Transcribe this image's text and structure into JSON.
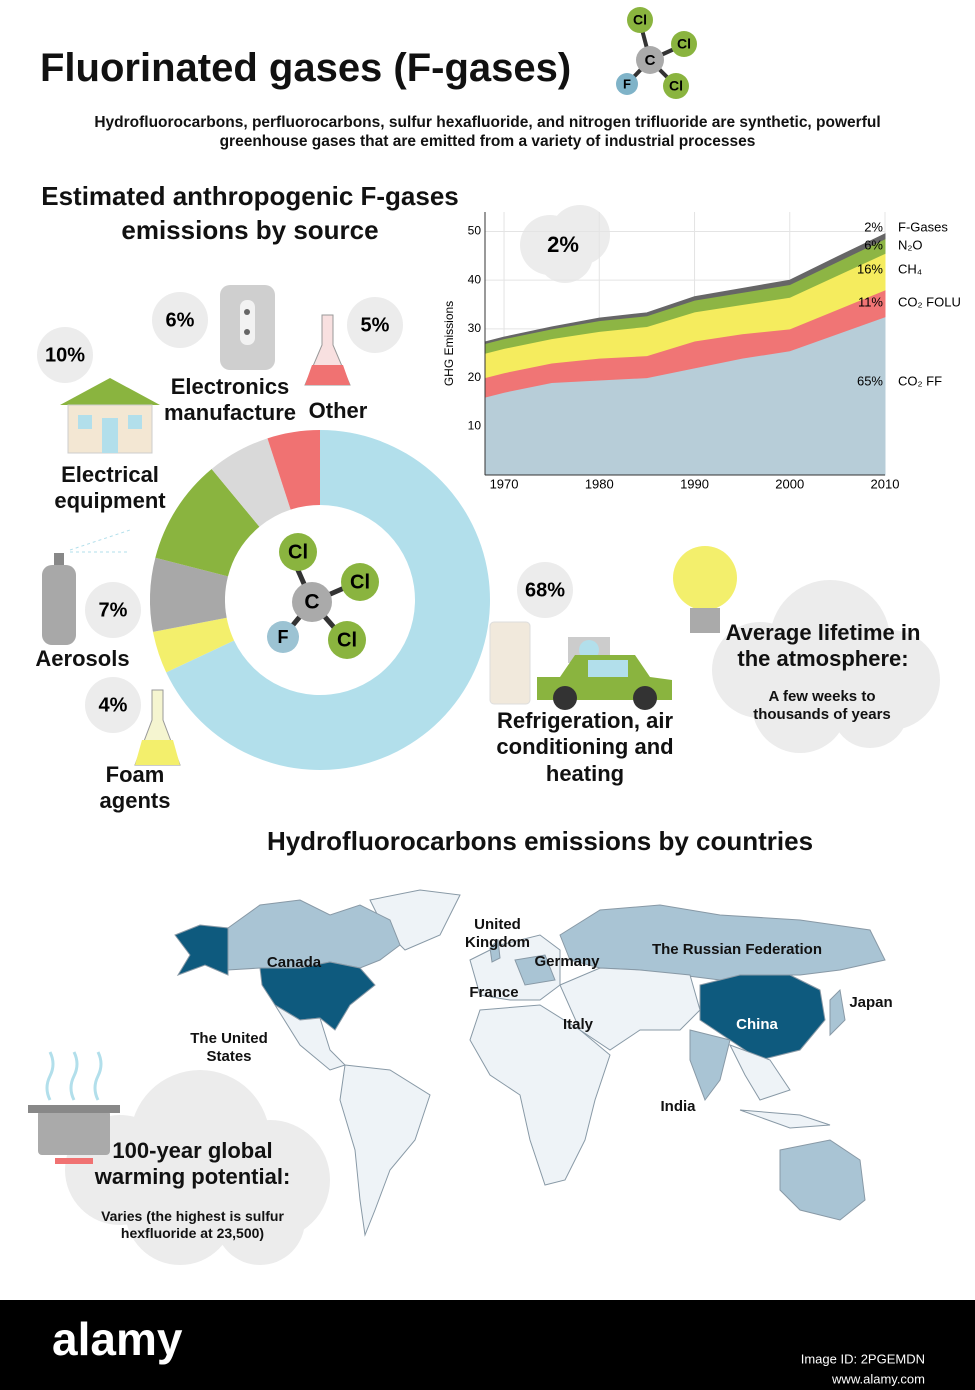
{
  "header": {
    "title": "Fluorinated gases (F-gases)",
    "subtitle": "Hydrofluorocarbons, perfluorocarbons, sulfur hexafluoride, and nitrogen trifluoride are synthetic, powerful greenhouse gases that are emitted from a variety of industrial processes",
    "molecule": {
      "center": "C",
      "chlorine": "Cl",
      "fluorine": "F"
    }
  },
  "chart_data": [
    {
      "type": "donut",
      "title": "Estimated anthropogenic F-gases emissions by source",
      "categories": [
        "Refrigeration, air conditioning and heating",
        "Foam agents",
        "Aerosols",
        "Electrical equipment",
        "Electronics manufacture",
        "Other"
      ],
      "values": [
        68,
        4,
        7,
        10,
        6,
        5
      ],
      "value_labels": [
        "68%",
        "4%",
        "7%",
        "10%",
        "6%",
        "5%"
      ],
      "colors": [
        "#b2dfeb",
        "#f3ef6c",
        "#a8a8a8",
        "#8ab43f",
        "#d9d9d9",
        "#f07272"
      ]
    },
    {
      "type": "area",
      "stacked": true,
      "annotation": "2%",
      "y_label": "GHG Emissions",
      "x": [
        1968,
        1970,
        1975,
        1980,
        1985,
        1990,
        1995,
        2000,
        2005,
        2010
      ],
      "series": [
        {
          "name": "CO₂ FF",
          "color": "#b7cdd8",
          "share": 65,
          "share_label": "65%",
          "values": [
            16,
            17,
            19,
            19.5,
            20,
            22,
            24,
            25.5,
            29,
            32.5
          ]
        },
        {
          "name": "CO₂ FOLU",
          "color": "#f07575",
          "share": 11,
          "share_label": "11%",
          "values": [
            4,
            4,
            4,
            4.5,
            4.5,
            5.5,
            5,
            4.5,
            5,
            5.5
          ]
        },
        {
          "name": "CH₄",
          "color": "#f5ec5e",
          "share": 16,
          "share_label": "16%",
          "values": [
            5,
            5,
            5,
            5.5,
            6,
            6,
            6,
            6.5,
            7,
            7.5
          ]
        },
        {
          "name": "N₂O",
          "color": "#8db544",
          "share": 6,
          "share_label": "6%",
          "values": [
            2,
            2,
            2,
            2.2,
            2.2,
            2.4,
            2.5,
            2.6,
            2.8,
            3
          ]
        },
        {
          "name": "F-Gases",
          "color": "#666666",
          "share": 2,
          "share_label": "2%",
          "values": [
            0.3,
            0.3,
            0.4,
            0.5,
            0.6,
            0.7,
            0.8,
            0.9,
            1,
            1
          ]
        }
      ],
      "xlim": [
        1968,
        2010
      ],
      "ylim": [
        0,
        54
      ],
      "xticks": [
        1970,
        1980,
        1990,
        2000,
        2010
      ],
      "yticks": [
        10,
        20,
        30,
        40,
        50
      ],
      "grid": true
    }
  ],
  "lifetime": {
    "title": "Average lifetime in the atmosphere:",
    "text": "A few weeks to thousands of years"
  },
  "map": {
    "title": "Hydrofluorocarbons emissions by countries",
    "countries": [
      "Canada",
      "The United States",
      "United Kingdom",
      "Germany",
      "France",
      "Italy",
      "The Russian Federation",
      "China",
      "Japan",
      "India"
    ]
  },
  "gwp": {
    "title": "100-year global warming potential:",
    "text": "Varies (the highest is sulfur hexfluoride at 23,500)"
  },
  "footer": {
    "brand": "alamy",
    "image_id": "Image ID: 2PGEMDN",
    "url": "www.alamy.com"
  }
}
